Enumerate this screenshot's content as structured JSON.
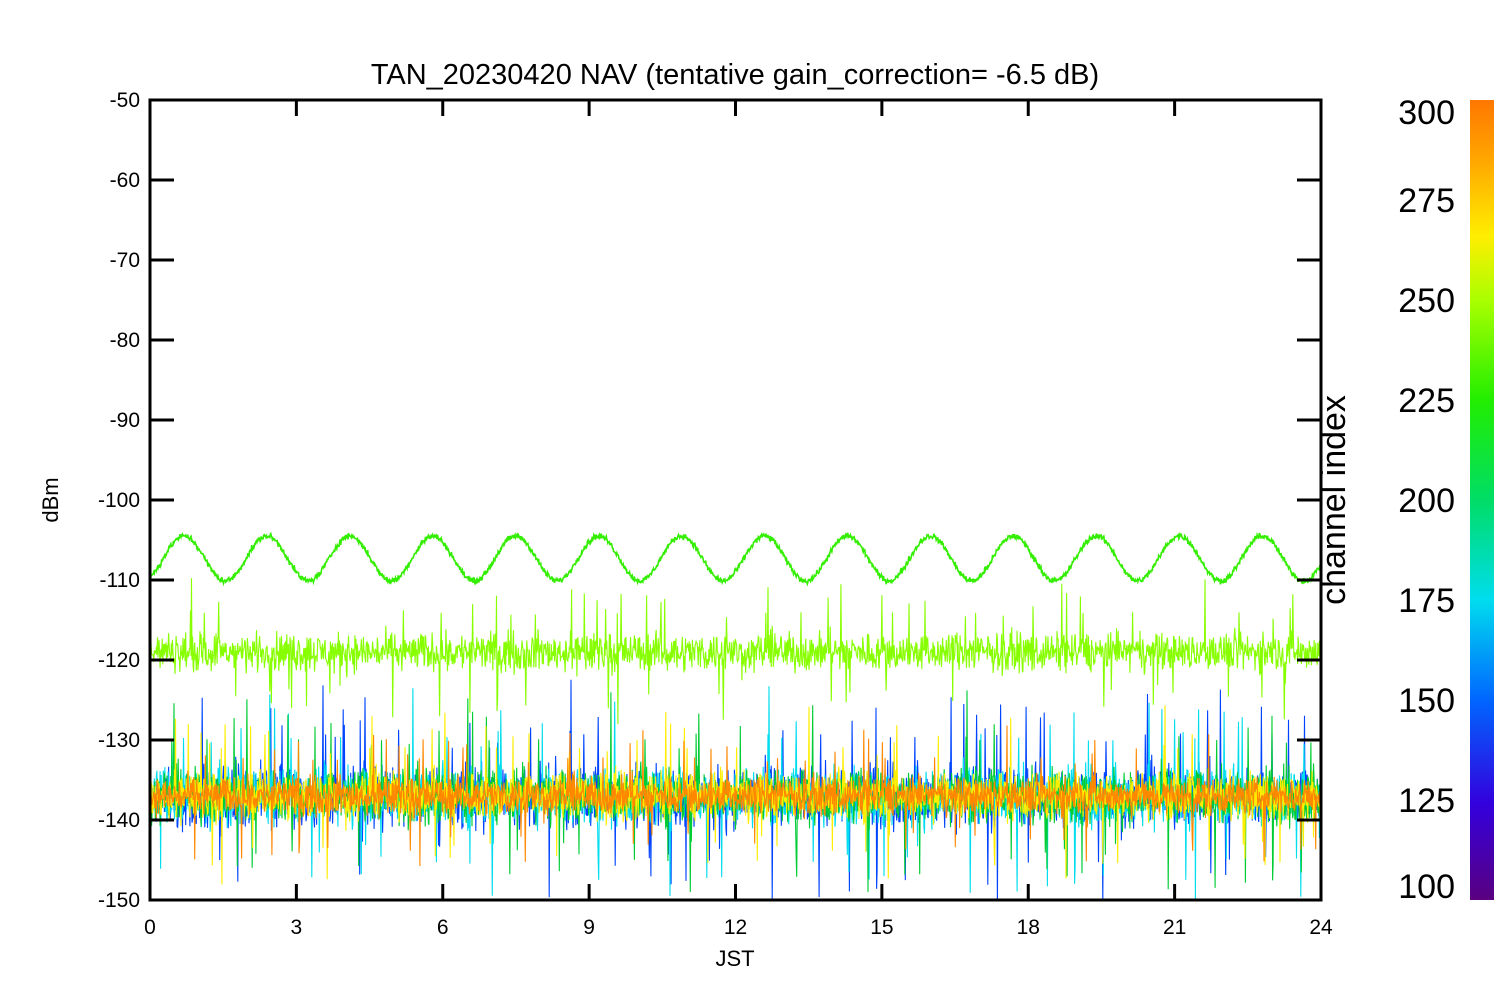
{
  "chart_data": {
    "type": "line",
    "title": "TAN_20230420 NAV (tentative gain_correction= -6.5 dB)",
    "xlabel": "JST",
    "ylabel": "dBm",
    "xlim": [
      0,
      24
    ],
    "ylim": [
      -150,
      -50
    ],
    "x_ticks": [
      0,
      3,
      6,
      9,
      12,
      15,
      18,
      21,
      24
    ],
    "y_ticks": [
      -50,
      -60,
      -70,
      -80,
      -90,
      -100,
      -110,
      -120,
      -130,
      -140,
      -150
    ],
    "colorbar": {
      "title": "channel index",
      "range": [
        100,
        300
      ],
      "ticks": [
        300,
        275,
        250,
        225,
        200,
        175,
        150,
        125,
        100
      ],
      "colormap": "rainbow"
    },
    "series": [
      {
        "channel_index": 245,
        "style": "sinusoid",
        "center_dbm": -107.3,
        "amplitude_db": 2.8,
        "period_hours": 1.7,
        "noise_db": 0.3,
        "color": "#33ee00"
      },
      {
        "channel_index": 255,
        "style": "noise-band",
        "center_dbm": -119,
        "spread_db": 3.5,
        "color": "#88ff00"
      },
      {
        "channel_index": 150,
        "style": "noise-band",
        "center_dbm": -137,
        "spread_db": 5.5,
        "color": "#0044ff"
      },
      {
        "channel_index": 175,
        "style": "noise-band",
        "center_dbm": -137,
        "spread_db": 5.2,
        "color": "#00ddee"
      },
      {
        "channel_index": 225,
        "style": "noise-band",
        "center_dbm": -137,
        "spread_db": 5.0,
        "color": "#00cc33"
      },
      {
        "channel_index": 265,
        "style": "noise-band",
        "center_dbm": -137,
        "spread_db": 4.3,
        "color": "#ffee00"
      },
      {
        "channel_index": 295,
        "style": "noise-band",
        "center_dbm": -137,
        "spread_db": 3.4,
        "color": "#ff8800"
      }
    ]
  }
}
